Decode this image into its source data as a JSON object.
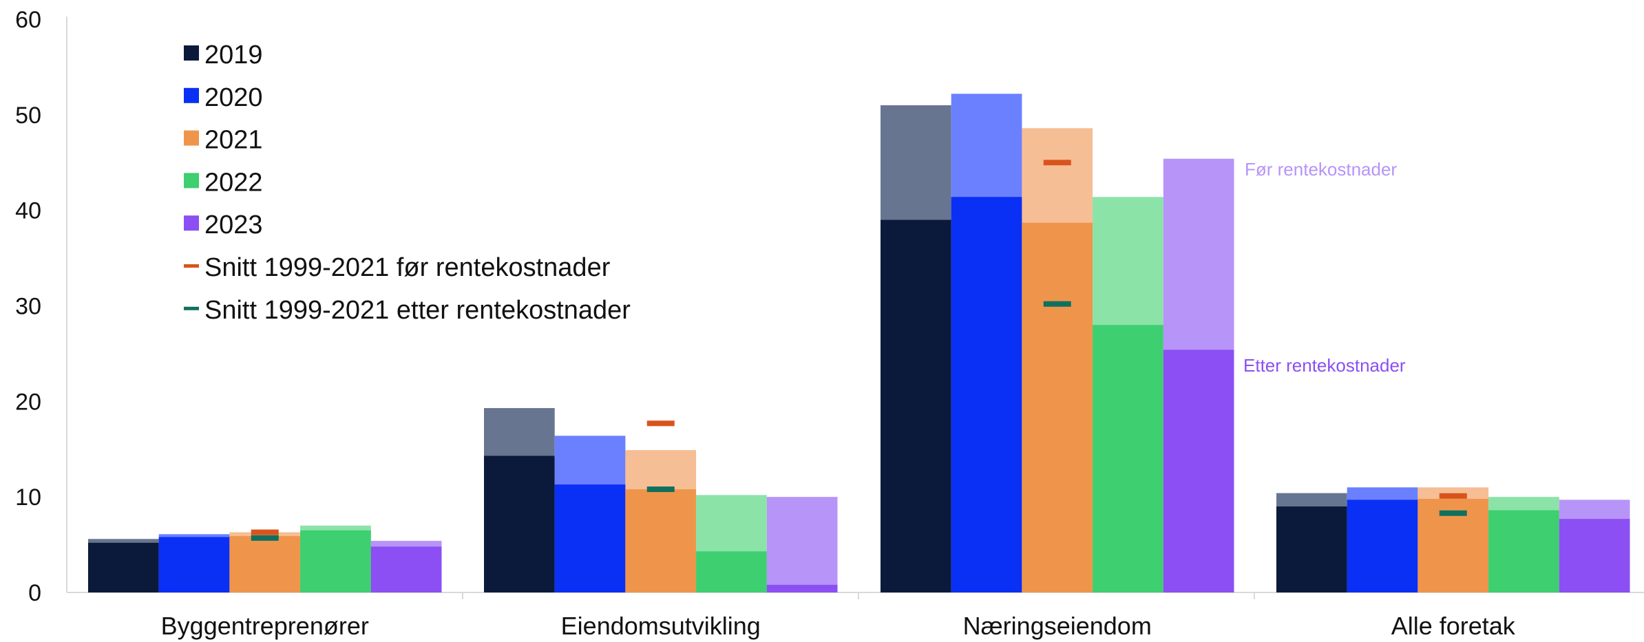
{
  "chart_data": {
    "type": "bar",
    "categories": [
      "Byggentreprenører",
      "Eiendomsutvikling",
      "Næringseiendom",
      "Alle foretak"
    ],
    "ylim": [
      0,
      60
    ],
    "yticks": [
      "0",
      "10",
      "20",
      "30",
      "40",
      "50",
      "60"
    ],
    "grid": false,
    "legend_position": "top-left",
    "series": [
      {
        "name": "2019",
        "after": [
          5.2,
          14.3,
          39.0,
          9.0
        ],
        "before": [
          5.6,
          19.3,
          51.0,
          10.4
        ],
        "color": "#0b1a3a",
        "light": "#687590"
      },
      {
        "name": "2020",
        "after": [
          5.8,
          11.3,
          41.4,
          9.7
        ],
        "before": [
          6.1,
          16.4,
          52.2,
          11.0
        ],
        "color": "#0a2ff5",
        "light": "#6a80ff"
      },
      {
        "name": "2021",
        "after": [
          5.9,
          10.8,
          38.7,
          9.8
        ],
        "before": [
          6.3,
          14.9,
          48.6,
          11.0
        ],
        "color": "#ef954b",
        "light": "#f6be94"
      },
      {
        "name": "2022",
        "after": [
          6.5,
          4.3,
          28.0,
          8.6
        ],
        "before": [
          7.0,
          10.2,
          41.4,
          10.0
        ],
        "color": "#3dcf70",
        "light": "#8be3a8"
      },
      {
        "name": "2023",
        "after": [
          4.8,
          0.8,
          25.4,
          7.7
        ],
        "before": [
          5.4,
          10.0,
          45.4,
          9.7
        ],
        "color": "#8b4ff3",
        "light": "#b794f8"
      }
    ],
    "avg_before": {
      "name": "Snitt 1999-2021 før rentekostnader",
      "values": [
        6.3,
        17.7,
        45.0,
        10.1
      ],
      "color": "#d9541d"
    },
    "avg_after": {
      "name": "Snitt 1999-2021 etter rentekostnader",
      "values": [
        5.7,
        10.8,
        30.2,
        8.3
      ],
      "color": "#0f7060"
    },
    "annotations": {
      "before_label": "Før rentekostnader",
      "after_label": "Etter rentekostnader",
      "before_color": "#b794f8",
      "after_color": "#8b4ff3"
    }
  }
}
